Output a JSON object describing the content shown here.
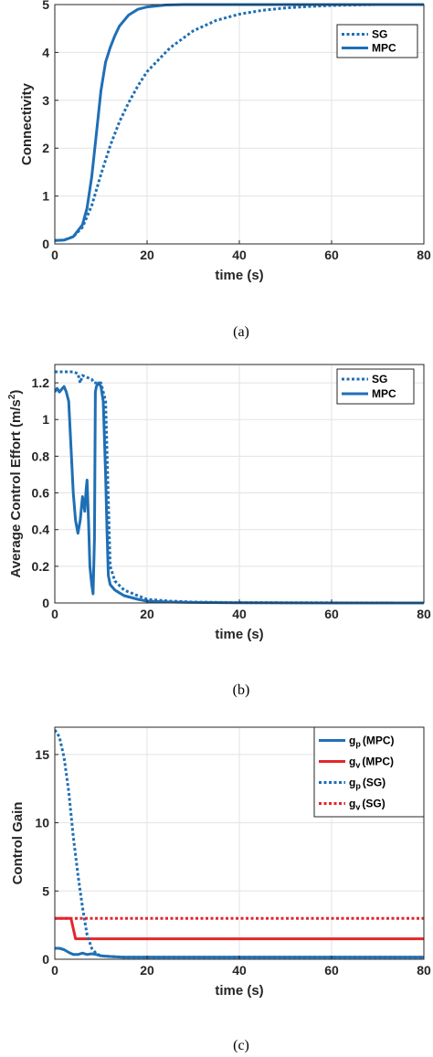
{
  "chart_data": [
    {
      "id": "a",
      "type": "line",
      "caption": "(a)",
      "xlabel": "time (s)",
      "ylabel": "Connectivity",
      "xlim": [
        0,
        80
      ],
      "ylim": [
        0,
        5
      ],
      "xticks": [
        0,
        20,
        40,
        60,
        80
      ],
      "yticks": [
        0,
        1,
        2,
        3,
        4,
        5
      ],
      "ytick_labels": [
        "0",
        "1",
        "2",
        "3",
        "4",
        "5"
      ],
      "grid": true,
      "legend": "top-right",
      "series": [
        {
          "name": "SG",
          "style": "dotted",
          "color": "#1f6fb5",
          "x": [
            0,
            2,
            4,
            6,
            8,
            10,
            12,
            14,
            16,
            18,
            20,
            25,
            30,
            35,
            40,
            45,
            50,
            55,
            60,
            70,
            80
          ],
          "y": [
            0.07,
            0.08,
            0.15,
            0.35,
            0.8,
            1.45,
            2.05,
            2.55,
            2.95,
            3.3,
            3.6,
            4.1,
            4.45,
            4.67,
            4.8,
            4.88,
            4.93,
            4.96,
            4.98,
            5.0,
            5.0
          ]
        },
        {
          "name": "MPC",
          "style": "solid",
          "color": "#1f6fb5",
          "x": [
            0,
            2,
            4,
            6,
            7,
            8,
            9,
            10,
            11,
            12,
            13,
            14,
            16,
            18,
            20,
            24,
            28,
            35,
            80
          ],
          "y": [
            0.07,
            0.08,
            0.15,
            0.4,
            0.75,
            1.4,
            2.3,
            3.2,
            3.8,
            4.1,
            4.35,
            4.55,
            4.78,
            4.9,
            4.95,
            4.99,
            5.0,
            5.0,
            5.0
          ]
        }
      ]
    },
    {
      "id": "b",
      "type": "line",
      "caption": "(b)",
      "xlabel": "time (s)",
      "ylabel": "Average Control Effort (m/s²)",
      "ylabel_main": "Average Control Effort (m/s",
      "ylabel_sup": "2",
      "ylabel_end": ")",
      "xlim": [
        0,
        80
      ],
      "ylim": [
        0,
        1.3
      ],
      "xticks": [
        0,
        20,
        40,
        60,
        80
      ],
      "yticks": [
        0,
        0.2,
        0.4,
        0.6,
        0.8,
        1.0,
        1.2
      ],
      "ytick_labels": [
        "0",
        "0.2",
        "0.4",
        "0.6",
        "0.8",
        "1",
        "1.2"
      ],
      "grid": true,
      "legend": "top-right",
      "series": [
        {
          "name": "SG",
          "style": "dotted",
          "color": "#1f6fb5",
          "x": [
            0,
            2,
            4,
            5,
            5.5,
            6,
            7,
            8,
            8.5,
            9,
            10,
            11,
            12,
            13,
            15,
            18,
            20,
            25,
            30,
            40,
            60,
            80
          ],
          "y": [
            1.26,
            1.26,
            1.26,
            1.25,
            1.2,
            1.24,
            1.23,
            1.22,
            1.2,
            1.2,
            1.2,
            1.1,
            0.2,
            0.12,
            0.07,
            0.04,
            0.02,
            0.01,
            0.005,
            0.002,
            0.001,
            0.0
          ]
        },
        {
          "name": "MPC",
          "style": "solid",
          "color": "#1f6fb5",
          "x": [
            0,
            0.5,
            1,
            2,
            2.5,
            3,
            3.5,
            4,
            4.5,
            5,
            5.5,
            6,
            6.5,
            6.8,
            7,
            7.3,
            7.6,
            8,
            8.3,
            8.6,
            8.8,
            9,
            9.5,
            10,
            10.5,
            11,
            11.3,
            11.6,
            12,
            13,
            15,
            18,
            20,
            25,
            30,
            40,
            60,
            80
          ],
          "y": [
            1.15,
            1.17,
            1.15,
            1.18,
            1.15,
            1.1,
            0.85,
            0.6,
            0.45,
            0.38,
            0.45,
            0.58,
            0.5,
            0.62,
            0.67,
            0.45,
            0.2,
            0.1,
            0.05,
            0.35,
            1.15,
            1.18,
            1.2,
            1.18,
            1.1,
            0.7,
            0.4,
            0.15,
            0.1,
            0.07,
            0.04,
            0.02,
            0.01,
            0.005,
            0.003,
            0.001,
            0.0,
            0.0
          ]
        }
      ]
    },
    {
      "id": "c",
      "type": "line",
      "caption": "(c)",
      "xlabel": "time (s)",
      "ylabel": "Control Gain",
      "xlim": [
        0,
        80
      ],
      "ylim": [
        0,
        17
      ],
      "xticks": [
        0,
        20,
        40,
        60,
        80
      ],
      "yticks": [
        0,
        5,
        10,
        15
      ],
      "ytick_labels": [
        "0",
        "5",
        "10",
        "15"
      ],
      "grid": true,
      "legend": "top-right",
      "series": [
        {
          "name": "gp (MPC)",
          "label_main": "g",
          "label_sub": "p",
          "label_end": "(MPC)",
          "style": "solid",
          "color": "#1f6fb5",
          "x": [
            0,
            1,
            2,
            3,
            4,
            5,
            6,
            7,
            8,
            9,
            10,
            12,
            15,
            20,
            40,
            60,
            80
          ],
          "y": [
            0.8,
            0.8,
            0.7,
            0.5,
            0.35,
            0.35,
            0.45,
            0.35,
            0.4,
            0.35,
            0.25,
            0.2,
            0.15,
            0.15,
            0.15,
            0.15,
            0.15
          ]
        },
        {
          "name": "gv (MPC)",
          "label_main": "g",
          "label_sub": "v",
          "label_end": "(MPC)",
          "style": "solid",
          "color": "#e3262b",
          "x": [
            0,
            3.5,
            4.5,
            80
          ],
          "y": [
            3.0,
            3.0,
            1.5,
            1.5
          ]
        },
        {
          "name": "gp (SG)",
          "label_main": "g",
          "label_sub": "p",
          "label_end": "(SG)",
          "style": "dotted",
          "color": "#1f6fb5",
          "x": [
            0,
            1,
            2,
            3,
            4,
            5,
            6,
            7,
            8,
            9,
            10,
            12,
            15,
            20,
            40,
            60,
            80
          ],
          "y": [
            16.8,
            16.3,
            14.8,
            12.3,
            9.0,
            6.2,
            3.8,
            1.8,
            0.8,
            0.4,
            0.25,
            0.2,
            0.15,
            0.15,
            0.15,
            0.15,
            0.15
          ]
        },
        {
          "name": "gv (SG)",
          "label_main": "g",
          "label_sub": "v",
          "label_end": "(SG)",
          "style": "dotted",
          "color": "#e3262b",
          "x": [
            0,
            80
          ],
          "y": [
            3.0,
            3.0
          ]
        }
      ]
    }
  ]
}
